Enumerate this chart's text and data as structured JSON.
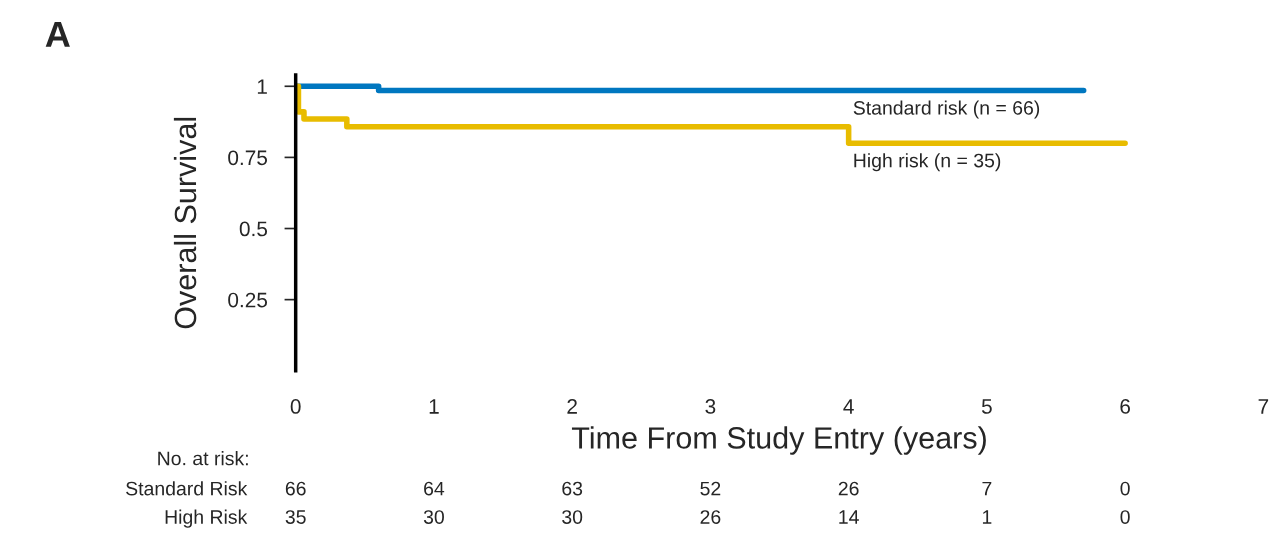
{
  "chart_data": {
    "type": "step",
    "xlabel": "Time From Study Entry (years)",
    "ylabel": "Overall Survival",
    "xlim": [
      0,
      7
    ],
    "ylim": [
      0,
      1.04
    ],
    "xticks": [
      0,
      1,
      2,
      3,
      4,
      5,
      6,
      7
    ],
    "yticks": [
      0.25,
      0.5,
      0.75,
      1
    ],
    "grid": false,
    "legend": false,
    "marker": "none",
    "line_style": "solid",
    "series": [
      {
        "name": "Standard risk (n = 66)",
        "color": "#0077c0",
        "x": [
          0,
          0.6,
          5.7
        ],
        "values": [
          1,
          0.985,
          0.985
        ]
      },
      {
        "name": "High risk (n = 35)",
        "color": "#e8bc00",
        "x": [
          0,
          0.02,
          0.06,
          0.37,
          4.0,
          6.0
        ],
        "values": [
          1,
          0.91,
          0.885,
          0.858,
          0.8,
          0.8
        ]
      }
    ],
    "annotations": [
      "A",
      "No. at risk:",
      "Standard Risk",
      "66",
      "64",
      "63",
      "52",
      "26",
      "7",
      "0",
      "High Risk",
      "35",
      "30",
      "30",
      "26",
      "14",
      "1",
      "0"
    ]
  }
}
